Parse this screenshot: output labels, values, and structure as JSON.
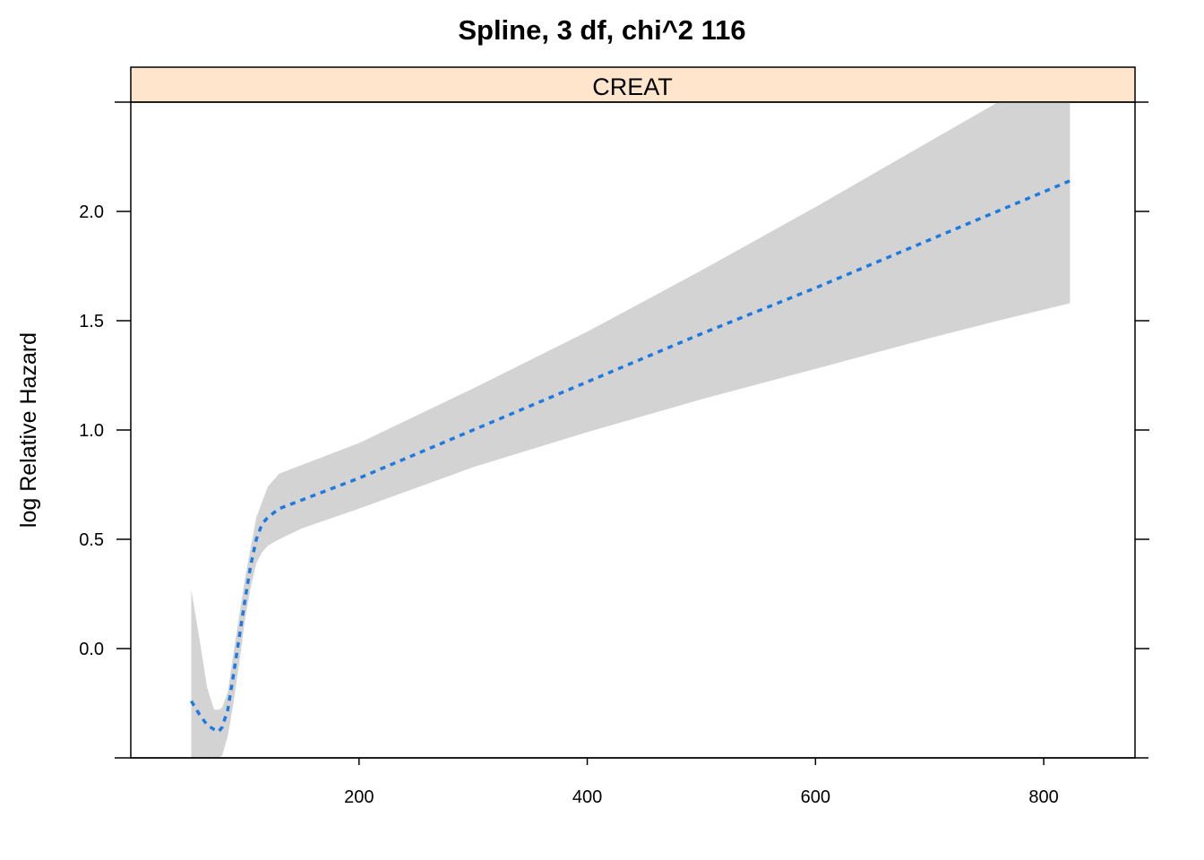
{
  "chart_data": {
    "type": "line",
    "title": "Spline, 3 df, chi^2 116",
    "panel_label": "CREAT",
    "xlabel": "",
    "ylabel": "log Relative Hazard",
    "xlim": [
      0,
      880
    ],
    "ylim": [
      -0.5,
      2.5
    ],
    "x_ticks": [
      200,
      400,
      600,
      800
    ],
    "x_tick_labels": [
      "200",
      "400",
      "600",
      "800"
    ],
    "y_ticks": [
      0.0,
      0.5,
      1.0,
      1.5,
      2.0
    ],
    "y_tick_labels": [
      "0.0",
      "0.5",
      "1.0",
      "1.5",
      "2.0"
    ],
    "grid": false,
    "colors": {
      "line": "#1f7ae0",
      "band": "#d3d3d3",
      "strip": "#ffe5cc"
    },
    "series": [
      {
        "kind": "line",
        "x": [
          53,
          60,
          67,
          73,
          77,
          80,
          85,
          90,
          95,
          100,
          105,
          110,
          115,
          120,
          130,
          150,
          200,
          300,
          400,
          500,
          600,
          700,
          823
        ],
        "y": [
          -0.24,
          -0.3,
          -0.35,
          -0.37,
          -0.38,
          -0.36,
          -0.28,
          -0.12,
          0.05,
          0.22,
          0.38,
          0.5,
          0.57,
          0.6,
          0.64,
          0.68,
          0.78,
          1.0,
          1.22,
          1.44,
          1.65,
          1.87,
          2.14
        ]
      },
      {
        "kind": "band",
        "x": [
          53,
          60,
          67,
          73,
          77,
          80,
          85,
          90,
          95,
          100,
          105,
          110,
          115,
          120,
          130,
          150,
          200,
          300,
          400,
          500,
          600,
          700,
          760,
          823
        ],
        "upper": [
          0.27,
          0.05,
          -0.18,
          -0.28,
          -0.28,
          -0.27,
          -0.2,
          -0.02,
          0.15,
          0.32,
          0.46,
          0.6,
          0.67,
          0.74,
          0.8,
          0.84,
          0.94,
          1.19,
          1.45,
          1.73,
          2.02,
          2.32,
          2.5,
          2.5
        ],
        "lower": [
          -0.5,
          -0.5,
          -0.5,
          -0.5,
          -0.5,
          -0.49,
          -0.4,
          -0.25,
          -0.07,
          0.13,
          0.28,
          0.39,
          0.44,
          0.47,
          0.5,
          0.55,
          0.64,
          0.83,
          0.99,
          1.14,
          1.28,
          1.42,
          1.5,
          1.58
        ]
      }
    ]
  }
}
